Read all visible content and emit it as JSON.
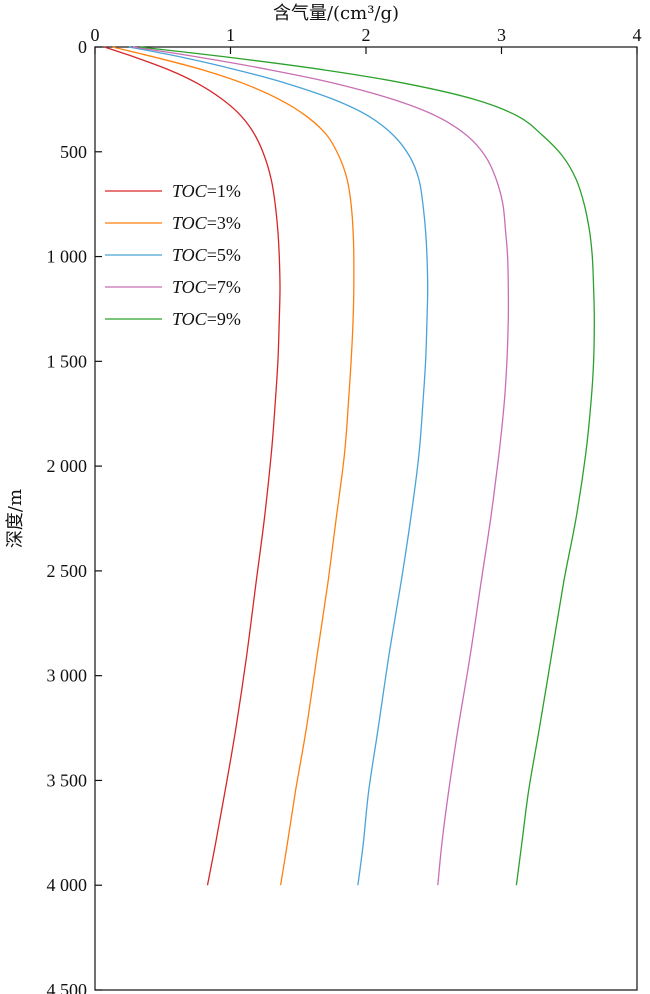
{
  "chart_data": {
    "type": "line",
    "xlabel": "含气量/(cm³/g)",
    "ylabel": "深度/m",
    "xlim": [
      0,
      4
    ],
    "ylim": [
      0,
      4500
    ],
    "x_axis_position": "top",
    "y_axis_inverted": true,
    "xticks": [
      0,
      1,
      2,
      3,
      4
    ],
    "xtick_labels": [
      "0",
      "1",
      "2",
      "3",
      "4"
    ],
    "yticks": [
      0,
      500,
      1000,
      1500,
      2000,
      2500,
      3000,
      3500,
      4000,
      4500
    ],
    "ytick_labels": [
      "0",
      "500",
      "1 000",
      "1 500",
      "2 000",
      "2 500",
      "3 000",
      "3 500",
      "4 000",
      "4 500"
    ],
    "legend_position": "left-upper",
    "series": [
      {
        "name": "TOC=1%",
        "color": "#d62728",
        "points": [
          [
            0.07,
            0
          ],
          [
            0.3,
            50
          ],
          [
            0.55,
            110
          ],
          [
            0.76,
            175
          ],
          [
            0.94,
            250
          ],
          [
            1.08,
            330
          ],
          [
            1.18,
            420
          ],
          [
            1.25,
            520
          ],
          [
            1.3,
            630
          ],
          [
            1.33,
            750
          ],
          [
            1.35,
            880
          ],
          [
            1.36,
            1000
          ],
          [
            1.365,
            1150
          ],
          [
            1.36,
            1300
          ],
          [
            1.35,
            1500
          ],
          [
            1.33,
            1700
          ],
          [
            1.3,
            1950
          ],
          [
            1.25,
            2250
          ],
          [
            1.19,
            2550
          ],
          [
            1.12,
            2900
          ],
          [
            1.04,
            3250
          ],
          [
            0.96,
            3550
          ],
          [
            0.89,
            3800
          ],
          [
            0.83,
            4000
          ]
        ]
      },
      {
        "name": "TOC=3%",
        "color": "#ff7f0e",
        "points": [
          [
            0.13,
            0
          ],
          [
            0.45,
            50
          ],
          [
            0.8,
            110
          ],
          [
            1.1,
            175
          ],
          [
            1.36,
            250
          ],
          [
            1.56,
            330
          ],
          [
            1.71,
            420
          ],
          [
            1.8,
            520
          ],
          [
            1.86,
            630
          ],
          [
            1.89,
            750
          ],
          [
            1.905,
            880
          ],
          [
            1.91,
            1000
          ],
          [
            1.91,
            1150
          ],
          [
            1.905,
            1300
          ],
          [
            1.89,
            1500
          ],
          [
            1.87,
            1700
          ],
          [
            1.84,
            1950
          ],
          [
            1.78,
            2250
          ],
          [
            1.72,
            2550
          ],
          [
            1.64,
            2900
          ],
          [
            1.56,
            3250
          ],
          [
            1.48,
            3550
          ],
          [
            1.42,
            3800
          ],
          [
            1.37,
            4000
          ]
        ]
      },
      {
        "name": "TOC=5%",
        "color": "#4aa3d8",
        "points": [
          [
            0.25,
            0
          ],
          [
            0.65,
            50
          ],
          [
            1.05,
            110
          ],
          [
            1.42,
            175
          ],
          [
            1.76,
            250
          ],
          [
            2.02,
            330
          ],
          [
            2.2,
            420
          ],
          [
            2.32,
            520
          ],
          [
            2.39,
            630
          ],
          [
            2.42,
            750
          ],
          [
            2.44,
            880
          ],
          [
            2.45,
            1000
          ],
          [
            2.455,
            1150
          ],
          [
            2.45,
            1300
          ],
          [
            2.44,
            1500
          ],
          [
            2.42,
            1700
          ],
          [
            2.39,
            1950
          ],
          [
            2.33,
            2250
          ],
          [
            2.26,
            2550
          ],
          [
            2.17,
            2900
          ],
          [
            2.09,
            3250
          ],
          [
            2.02,
            3550
          ],
          [
            1.98,
            3800
          ],
          [
            1.94,
            4000
          ]
        ]
      },
      {
        "name": "TOC=7%",
        "color": "#c86fb3",
        "points": [
          [
            0.28,
            0
          ],
          [
            0.78,
            50
          ],
          [
            1.3,
            110
          ],
          [
            1.78,
            175
          ],
          [
            2.2,
            250
          ],
          [
            2.52,
            330
          ],
          [
            2.74,
            420
          ],
          [
            2.88,
            520
          ],
          [
            2.96,
            630
          ],
          [
            3.01,
            750
          ],
          [
            3.03,
            880
          ],
          [
            3.045,
            1000
          ],
          [
            3.05,
            1150
          ],
          [
            3.05,
            1300
          ],
          [
            3.04,
            1500
          ],
          [
            3.02,
            1700
          ],
          [
            2.98,
            1950
          ],
          [
            2.92,
            2250
          ],
          [
            2.85,
            2550
          ],
          [
            2.77,
            2900
          ],
          [
            2.68,
            3250
          ],
          [
            2.61,
            3550
          ],
          [
            2.56,
            3800
          ],
          [
            2.53,
            4000
          ]
        ]
      },
      {
        "name": "TOC=9%",
        "color": "#2ca02c",
        "points": [
          [
            0.33,
            0
          ],
          [
            1.0,
            50
          ],
          [
            1.7,
            110
          ],
          [
            2.3,
            175
          ],
          [
            2.8,
            250
          ],
          [
            3.12,
            330
          ],
          [
            3.3,
            420
          ],
          [
            3.45,
            520
          ],
          [
            3.55,
            630
          ],
          [
            3.61,
            750
          ],
          [
            3.65,
            880
          ],
          [
            3.67,
            1000
          ],
          [
            3.68,
            1150
          ],
          [
            3.685,
            1300
          ],
          [
            3.68,
            1500
          ],
          [
            3.66,
            1700
          ],
          [
            3.62,
            1950
          ],
          [
            3.55,
            2250
          ],
          [
            3.46,
            2550
          ],
          [
            3.37,
            2900
          ],
          [
            3.28,
            3250
          ],
          [
            3.2,
            3550
          ],
          [
            3.15,
            3800
          ],
          [
            3.11,
            4000
          ]
        ]
      }
    ]
  }
}
